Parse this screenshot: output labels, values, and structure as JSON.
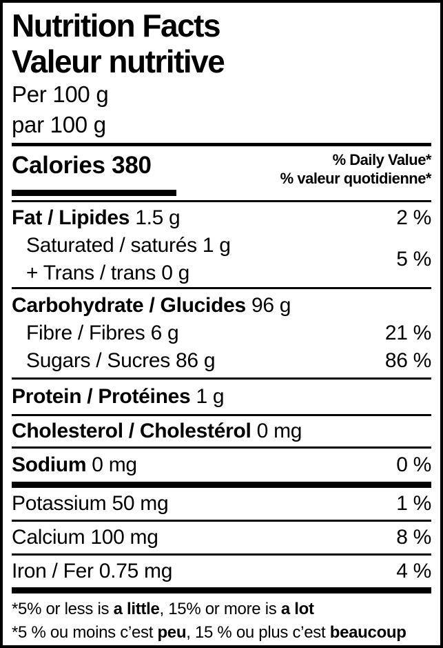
{
  "colors": {
    "background": "#ffffff",
    "text": "#000000",
    "rule": "#000000"
  },
  "header": {
    "title_en": "Nutrition Facts",
    "title_fr": "Valeur nutritive",
    "serving_en": "Per 100 g",
    "serving_fr": "par 100 g"
  },
  "calories": {
    "label": "Calories",
    "value": "380"
  },
  "daily_value_header": {
    "en": "% Daily Value*",
    "fr": "% valeur quotidienne*"
  },
  "rows": {
    "fat": {
      "name": "Fat / Lipides",
      "amount": "1.5 g",
      "dv": "2 %"
    },
    "saturated": {
      "name": "Saturated / saturés",
      "amount": "1 g"
    },
    "trans": {
      "name": "+ Trans / trans",
      "amount": "0 g"
    },
    "saturated_trans_dv": "5 %",
    "carbohydrate": {
      "name": "Carbohydrate / Glucides",
      "amount": "96 g"
    },
    "fibre": {
      "name": "Fibre / Fibres",
      "amount": "6 g",
      "dv": "21 %"
    },
    "sugars": {
      "name": "Sugars / Sucres",
      "amount": "86 g",
      "dv": "86 %"
    },
    "protein": {
      "name": "Protein / Protéines",
      "amount": "1 g"
    },
    "cholesterol": {
      "name": "Cholesterol / Cholestérol",
      "amount": "0 mg"
    },
    "sodium": {
      "name": "Sodium",
      "amount": "0 mg",
      "dv": "0 %"
    },
    "potassium": {
      "name": "Potassium",
      "amount": "50 mg",
      "dv": "1 %"
    },
    "calcium": {
      "name": "Calcium",
      "amount": "100 mg",
      "dv": "8 %"
    },
    "iron": {
      "name": "Iron / Fer",
      "amount": "0.75 mg",
      "dv": "4 %"
    }
  },
  "footnote": {
    "en": {
      "part1": "*5% or less is ",
      "bold1": "a little",
      "part2": ", 15% or more is ",
      "bold2": "a lot"
    },
    "fr": {
      "part1": "*5 % ou moins c’est ",
      "bold1": "peu",
      "part2": ", 15 % ou plus c’est ",
      "bold2": "beaucoup"
    }
  }
}
